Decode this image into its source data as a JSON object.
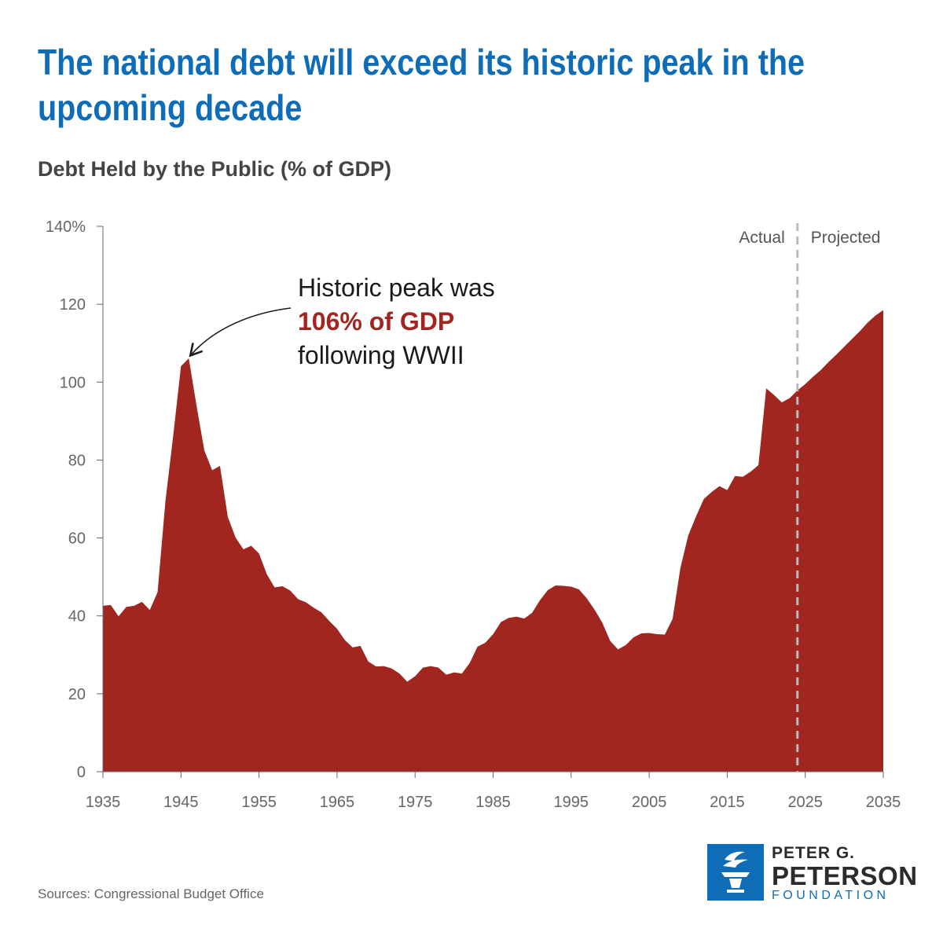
{
  "header": {
    "title": "The national debt will exceed its historic peak in the upcoming decade",
    "subtitle": "Debt Held by the Public (% of GDP)"
  },
  "footer": {
    "source": "Sources: Congressional Budget Office",
    "logo_line1": "PETER G.",
    "logo_line2": "PETERSON",
    "logo_line3": "FOUNDATION"
  },
  "colors": {
    "title": "#0f6cb7",
    "area": "#a12620",
    "divider": "#bbbbbb",
    "logo": "#0f6cb7"
  },
  "chart_data": {
    "type": "area",
    "title": "The national debt will exceed its historic peak in the upcoming decade",
    "subtitle": "Debt Held by the Public (% of GDP)",
    "xlabel": "",
    "ylabel": "",
    "xlim": [
      1935,
      2035
    ],
    "ylim": [
      0,
      140
    ],
    "x_ticks": [
      1935,
      1945,
      1955,
      1965,
      1975,
      1985,
      1995,
      2005,
      2015,
      2025,
      2035
    ],
    "y_ticks": [
      0,
      20,
      40,
      60,
      80,
      100,
      120,
      140
    ],
    "y_tick_labels": [
      "0",
      "20",
      "40",
      "60",
      "80",
      "100",
      "120",
      "140%"
    ],
    "grid": false,
    "divider_x": 2024,
    "divider_labels": {
      "left": "Actual",
      "right": "Projected"
    },
    "annotation": {
      "line1": "Historic peak was",
      "line2": "106% of GDP",
      "line3": "following WWII",
      "target_x": 1946,
      "target_y": 106
    },
    "series": [
      {
        "x": [
          1935,
          1936,
          1937,
          1938,
          1939,
          1940,
          1941,
          1942,
          1943,
          1944,
          1945,
          1946,
          1947,
          1948,
          1949,
          1950,
          1951,
          1952,
          1953,
          1954,
          1955,
          1956,
          1957,
          1958,
          1959,
          1960,
          1961,
          1962,
          1963,
          1964,
          1965,
          1966,
          1967,
          1968,
          1969,
          1970,
          1971,
          1972,
          1973,
          1974,
          1975,
          1976,
          1977,
          1978,
          1979,
          1980,
          1981,
          1982,
          1983,
          1984,
          1985,
          1986,
          1987,
          1988,
          1989,
          1990,
          1991,
          1992,
          1993,
          1994,
          1995,
          1996,
          1997,
          1998,
          1999,
          2000,
          2001,
          2002,
          2003,
          2004,
          2005,
          2006,
          2007,
          2008,
          2009,
          2010,
          2011,
          2012,
          2013,
          2014,
          2015,
          2016,
          2017,
          2018,
          2019,
          2020,
          2021,
          2022,
          2023,
          2024,
          2025,
          2026,
          2027,
          2028,
          2029,
          2030,
          2031,
          2032,
          2033,
          2034,
          2035
        ],
        "values": [
          42.6,
          42.8,
          39.9,
          42.3,
          42.6,
          43.6,
          41.5,
          46.1,
          69.3,
          86.2,
          104.1,
          106.1,
          93.9,
          82.4,
          77.4,
          78.5,
          65.4,
          60.1,
          57.1,
          58.0,
          56.0,
          50.7,
          47.3,
          47.6,
          46.5,
          44.3,
          43.5,
          42.1,
          40.9,
          38.7,
          36.7,
          33.8,
          31.9,
          32.3,
          28.3,
          27.0,
          27.1,
          26.5,
          25.2,
          23.1,
          24.5,
          26.7,
          27.1,
          26.7,
          24.9,
          25.5,
          25.2,
          27.9,
          32.1,
          33.1,
          35.3,
          38.4,
          39.5,
          39.8,
          39.3,
          40.8,
          44.0,
          46.6,
          47.8,
          47.7,
          47.5,
          46.8,
          44.5,
          41.6,
          38.2,
          33.6,
          31.4,
          32.5,
          34.5,
          35.5,
          35.6,
          35.3,
          35.2,
          39.2,
          52.3,
          60.6,
          65.5,
          70.0,
          71.8,
          73.3,
          72.3,
          75.9,
          75.7,
          77.0,
          78.7,
          98.4,
          96.7,
          94.8,
          95.9,
          97.9,
          99.5,
          101.4,
          103.1,
          105.2,
          107.1,
          109.1,
          111.1,
          113.1,
          115.3,
          117.1,
          118.5
        ]
      }
    ]
  }
}
